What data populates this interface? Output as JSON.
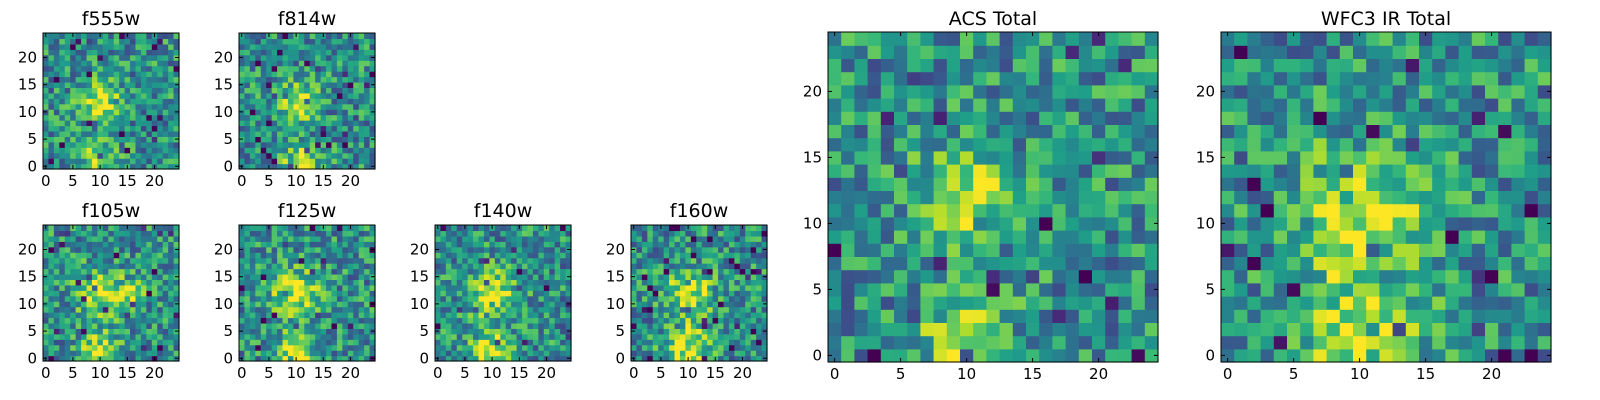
{
  "chart_data": [
    {
      "type": "heatmap",
      "title": "f555w",
      "grid_size": 25,
      "xlim": [
        -0.5,
        24.5
      ],
      "ylim": [
        -0.5,
        24.5
      ],
      "xticks": [
        0,
        5,
        10,
        15,
        20
      ],
      "yticks": [
        0,
        5,
        10,
        15,
        20
      ],
      "grid": false,
      "bright_regions": [
        [
          10,
          12,
          2.5
        ],
        [
          10,
          1,
          2.2
        ]
      ],
      "seed": 11
    },
    {
      "type": "heatmap",
      "title": "f814w",
      "grid_size": 25,
      "xlim": [
        -0.5,
        24.5
      ],
      "ylim": [
        -0.5,
        24.5
      ],
      "xticks": [
        0,
        5,
        10,
        15,
        20
      ],
      "yticks": [
        0,
        5,
        10,
        15,
        20
      ],
      "grid": false,
      "bright_regions": [
        [
          10,
          12,
          2.5
        ],
        [
          11,
          1,
          2.2
        ]
      ],
      "seed": 23
    },
    {
      "type": "heatmap",
      "title": "f105w",
      "grid_size": 25,
      "xlim": [
        -0.5,
        24.5
      ],
      "ylim": [
        -0.5,
        24.5
      ],
      "xticks": [
        0,
        5,
        10,
        15,
        20
      ],
      "yticks": [
        0,
        5,
        10,
        15,
        20
      ],
      "grid": false,
      "bright_regions": [
        [
          10,
          12,
          3.0
        ],
        [
          10,
          1,
          2.5
        ],
        [
          16,
          12,
          1.5
        ]
      ],
      "seed": 37
    },
    {
      "type": "heatmap",
      "title": "f125w",
      "grid_size": 25,
      "xlim": [
        -0.5,
        24.5
      ],
      "ylim": [
        -0.5,
        24.5
      ],
      "xticks": [
        0,
        5,
        10,
        15,
        20
      ],
      "yticks": [
        0,
        5,
        10,
        15,
        20
      ],
      "grid": false,
      "bright_regions": [
        [
          10,
          12,
          3.0
        ],
        [
          10,
          1,
          2.5
        ]
      ],
      "seed": 41
    },
    {
      "type": "heatmap",
      "title": "f140w",
      "grid_size": 25,
      "xlim": [
        -0.5,
        24.5
      ],
      "ylim": [
        -0.5,
        24.5
      ],
      "xticks": [
        0,
        5,
        10,
        15,
        20
      ],
      "yticks": [
        0,
        5,
        10,
        15,
        20
      ],
      "grid": false,
      "bright_regions": [
        [
          10,
          12,
          3.0
        ],
        [
          10,
          1,
          2.8
        ]
      ],
      "seed": 53
    },
    {
      "type": "heatmap",
      "title": "f160w",
      "grid_size": 25,
      "xlim": [
        -0.5,
        24.5
      ],
      "ylim": [
        -0.5,
        24.5
      ],
      "xticks": [
        0,
        5,
        10,
        15,
        20
      ],
      "yticks": [
        0,
        5,
        10,
        15,
        20
      ],
      "grid": false,
      "bright_regions": [
        [
          10,
          12,
          3.0
        ],
        [
          10,
          2,
          2.8
        ]
      ],
      "seed": 67
    },
    {
      "type": "heatmap",
      "title": "ACS Total",
      "grid_size": 25,
      "xlim": [
        -0.5,
        24.5
      ],
      "ylim": [
        -0.5,
        24.5
      ],
      "xticks": [
        0,
        5,
        10,
        15,
        20
      ],
      "yticks": [
        0,
        5,
        10,
        15,
        20
      ],
      "grid": false,
      "bright_regions": [
        [
          10,
          12,
          2.5
        ],
        [
          10,
          1,
          2.2
        ]
      ],
      "seed": 79
    },
    {
      "type": "heatmap",
      "title": "WFC3 IR Total",
      "grid_size": 25,
      "xlim": [
        -0.5,
        24.5
      ],
      "ylim": [
        -0.5,
        24.5
      ],
      "xticks": [
        0,
        5,
        10,
        15,
        20
      ],
      "yticks": [
        0,
        5,
        10,
        15,
        20
      ],
      "grid": false,
      "bright_regions": [
        [
          10,
          11,
          3.2
        ],
        [
          10,
          2,
          3.0
        ]
      ],
      "seed": 83
    }
  ],
  "colormap": "viridis"
}
